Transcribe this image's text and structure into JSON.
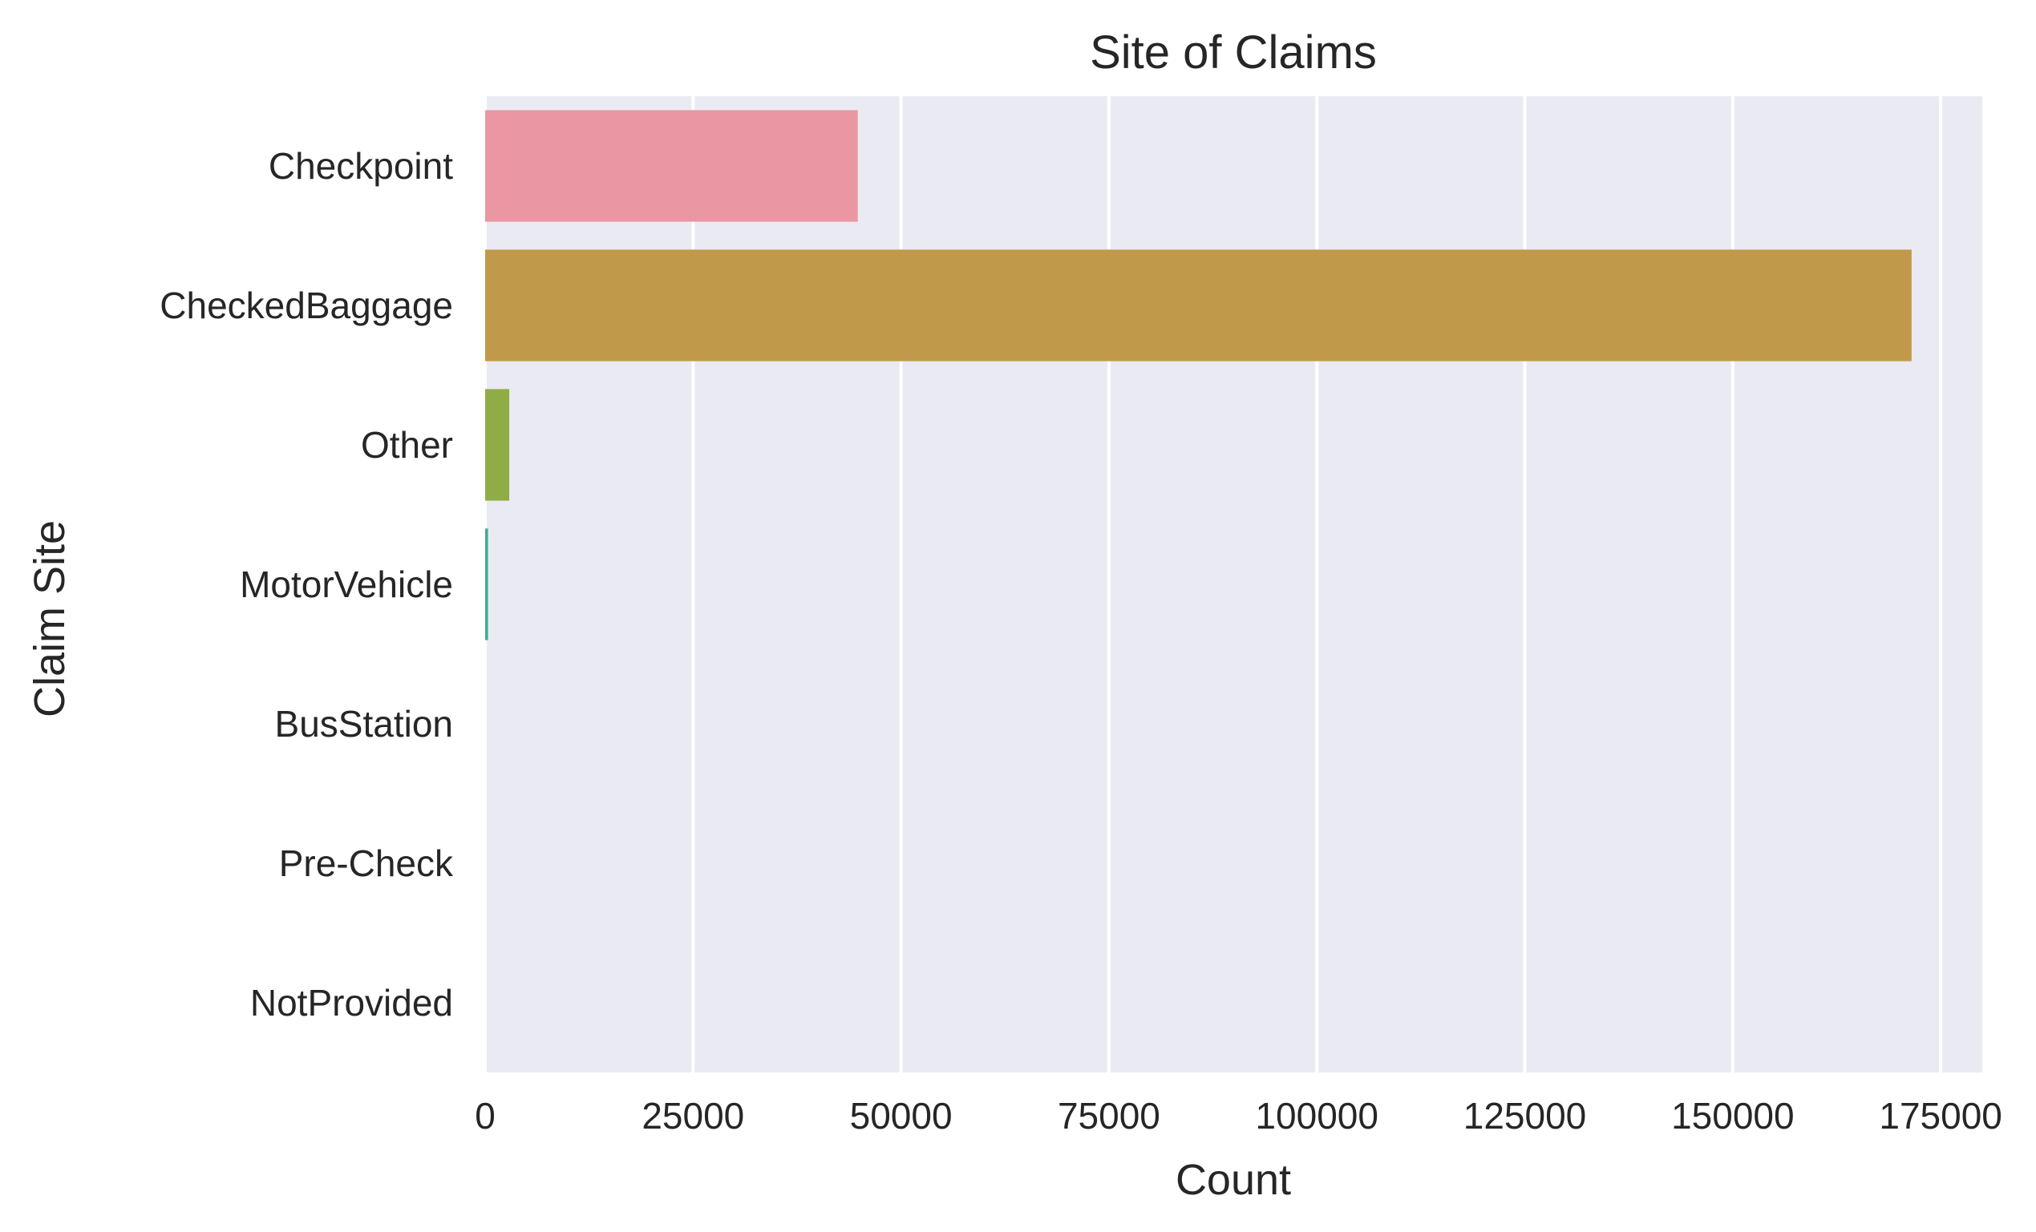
{
  "chart_data": {
    "type": "bar",
    "orientation": "horizontal",
    "title": "Site of Claims",
    "xlabel": "Count",
    "ylabel": "Claim Site",
    "categories": [
      "Checkpoint",
      "CheckedBaggage",
      "Other",
      "MotorVehicle",
      "BusStation",
      "Pre-Check",
      "NotProvided"
    ],
    "values": [
      44800,
      171500,
      2900,
      350,
      0,
      0,
      0
    ],
    "colors": [
      "#ea96a3",
      "#c0994b",
      "#8fac47",
      "#3fae92",
      "#44aac0",
      "#a4a3e2",
      "#e68ad4"
    ],
    "xlim": [
      0,
      180000
    ],
    "xticks": [
      0,
      25000,
      50000,
      75000,
      100000,
      125000,
      150000,
      175000
    ],
    "xtick_labels": [
      "0",
      "25000",
      "50000",
      "75000",
      "100000",
      "125000",
      "150000",
      "175000"
    ],
    "grid": true,
    "grid_axis": "x",
    "background": "#eaeaf2",
    "grid_color": "#ffffff"
  }
}
